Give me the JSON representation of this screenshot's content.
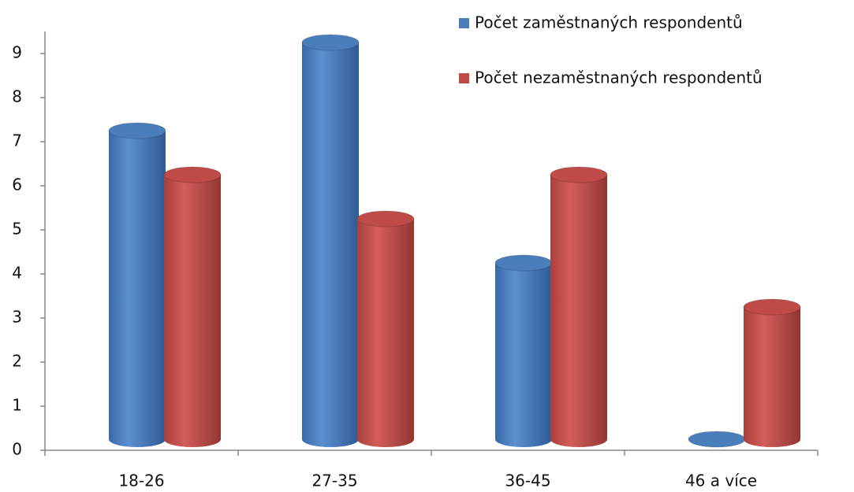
{
  "chart_data": {
    "type": "bar",
    "categories": [
      "18-26",
      "27-35",
      "36-45",
      "46 a více"
    ],
    "series": [
      {
        "name": "Počet zaměstnaných respondentů",
        "color": "#4a7ebb",
        "values": [
          7,
          9,
          4,
          0
        ]
      },
      {
        "name": "Počet nezaměstnaných respondentů",
        "color": "#be4b48",
        "values": [
          6,
          5,
          6,
          3
        ]
      }
    ],
    "ylim": [
      0,
      9
    ],
    "yticks": [
      0,
      1,
      2,
      3,
      4,
      5,
      6,
      7,
      8,
      9
    ],
    "legend": "top-right"
  }
}
